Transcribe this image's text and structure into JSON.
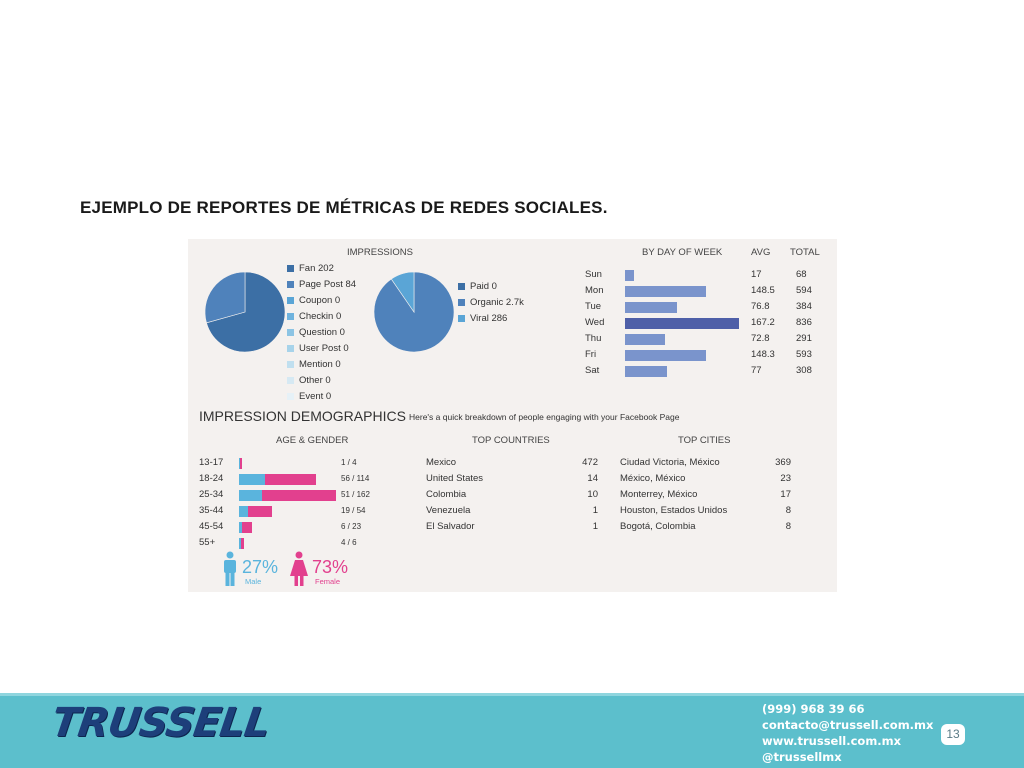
{
  "slide_title": "EJEMPLO DE REPORTES DE MÉTRICAS DE REDES SOCIALES.",
  "impressions": {
    "title": "IMPRESSIONS",
    "legend1": [
      {
        "label": "Fan 202",
        "color": "#3c6fa5"
      },
      {
        "label": "Page Post 84",
        "color": "#4f82bb"
      },
      {
        "label": "Coupon 0",
        "color": "#5aa5d6"
      },
      {
        "label": "Checkin 0",
        "color": "#6fb3de"
      },
      {
        "label": "Question 0",
        "color": "#8cc4e4"
      },
      {
        "label": "User Post 0",
        "color": "#a7d3ea"
      },
      {
        "label": "Mention 0",
        "color": "#c0dfef"
      },
      {
        "label": "Other 0",
        "color": "#d6e9f3"
      },
      {
        "label": "Event 0",
        "color": "#e6f1f7"
      }
    ],
    "legend2": [
      {
        "label": "Paid 0",
        "color": "#3c6fa5"
      },
      {
        "label": "Organic 2.7k",
        "color": "#4f82bb"
      },
      {
        "label": "Viral 286",
        "color": "#5aa5d6"
      }
    ],
    "pie1_values": [
      202,
      84
    ],
    "pie2_values": [
      0,
      2700,
      286
    ]
  },
  "by_day": {
    "title": "BY DAY OF WEEK",
    "avg_header": "AVG",
    "total_header": "TOTAL",
    "max_total": 836,
    "rows": [
      {
        "day": "Sun",
        "avg": "17",
        "total": "68",
        "value": 68,
        "color": "#7a94cc"
      },
      {
        "day": "Mon",
        "avg": "148.5",
        "total": "594",
        "value": 594,
        "color": "#7a94cc"
      },
      {
        "day": "Tue",
        "avg": "76.8",
        "total": "384",
        "value": 384,
        "color": "#7a94cc"
      },
      {
        "day": "Wed",
        "avg": "167.2",
        "total": "836",
        "value": 836,
        "color": "#4e5fa8"
      },
      {
        "day": "Thu",
        "avg": "72.8",
        "total": "291",
        "value": 291,
        "color": "#7a94cc"
      },
      {
        "day": "Fri",
        "avg": "148.3",
        "total": "593",
        "value": 593,
        "color": "#7a94cc"
      },
      {
        "day": "Sat",
        "avg": "77",
        "total": "308",
        "value": 308,
        "color": "#7a94cc"
      }
    ]
  },
  "demographics": {
    "title": "IMPRESSION DEMOGRAPHICS",
    "subtitle": "Here's a quick breakdown of people engaging with your Facebook Page",
    "age_gender_header": "AGE & GENDER",
    "countries_header": "TOP COUNTRIES",
    "cities_header": "TOP CITIES",
    "age_rows": [
      {
        "age": "13-17",
        "male": 1,
        "female": 4,
        "label": "1 / 4"
      },
      {
        "age": "18-24",
        "male": 56,
        "female": 114,
        "label": "56 / 114"
      },
      {
        "age": "25-34",
        "male": 51,
        "female": 162,
        "label": "51 / 162"
      },
      {
        "age": "35-44",
        "male": 19,
        "female": 54,
        "label": "19 / 54"
      },
      {
        "age": "45-54",
        "male": 6,
        "female": 23,
        "label": "6 / 23"
      },
      {
        "age": "55+",
        "male": 4,
        "female": 6,
        "label": "4 / 6"
      }
    ],
    "max_age_total": 213,
    "male_color": "#5ab4dd",
    "female_color": "#e2408e",
    "countries": [
      {
        "name": "Mexico",
        "value": "472"
      },
      {
        "name": "United States",
        "value": "14"
      },
      {
        "name": "Colombia",
        "value": "10"
      },
      {
        "name": "Venezuela",
        "value": "1"
      },
      {
        "name": "El Salvador",
        "value": "1"
      }
    ],
    "cities": [
      {
        "name": "Ciudad Victoria, México",
        "value": "369"
      },
      {
        "name": "México,  México",
        "value": "23"
      },
      {
        "name": "Monterrey,  México",
        "value": "17"
      },
      {
        "name": "Houston,  Estados Unidos",
        "value": "8"
      },
      {
        "name": "Bogotá, Colombia",
        "value": "8"
      }
    ],
    "male_pct": "27%",
    "male_label": "Male",
    "female_pct": "73%",
    "female_label": "Female"
  },
  "footer": {
    "logo_text": "TRUSSELL",
    "phone": "(999) 968 39 66",
    "email": "contacto@trussell.com.mx",
    "website": "www.trussell.com.mx",
    "social": "@trussellmx",
    "page_number": "13",
    "bg_color": "#5cbfcc"
  }
}
